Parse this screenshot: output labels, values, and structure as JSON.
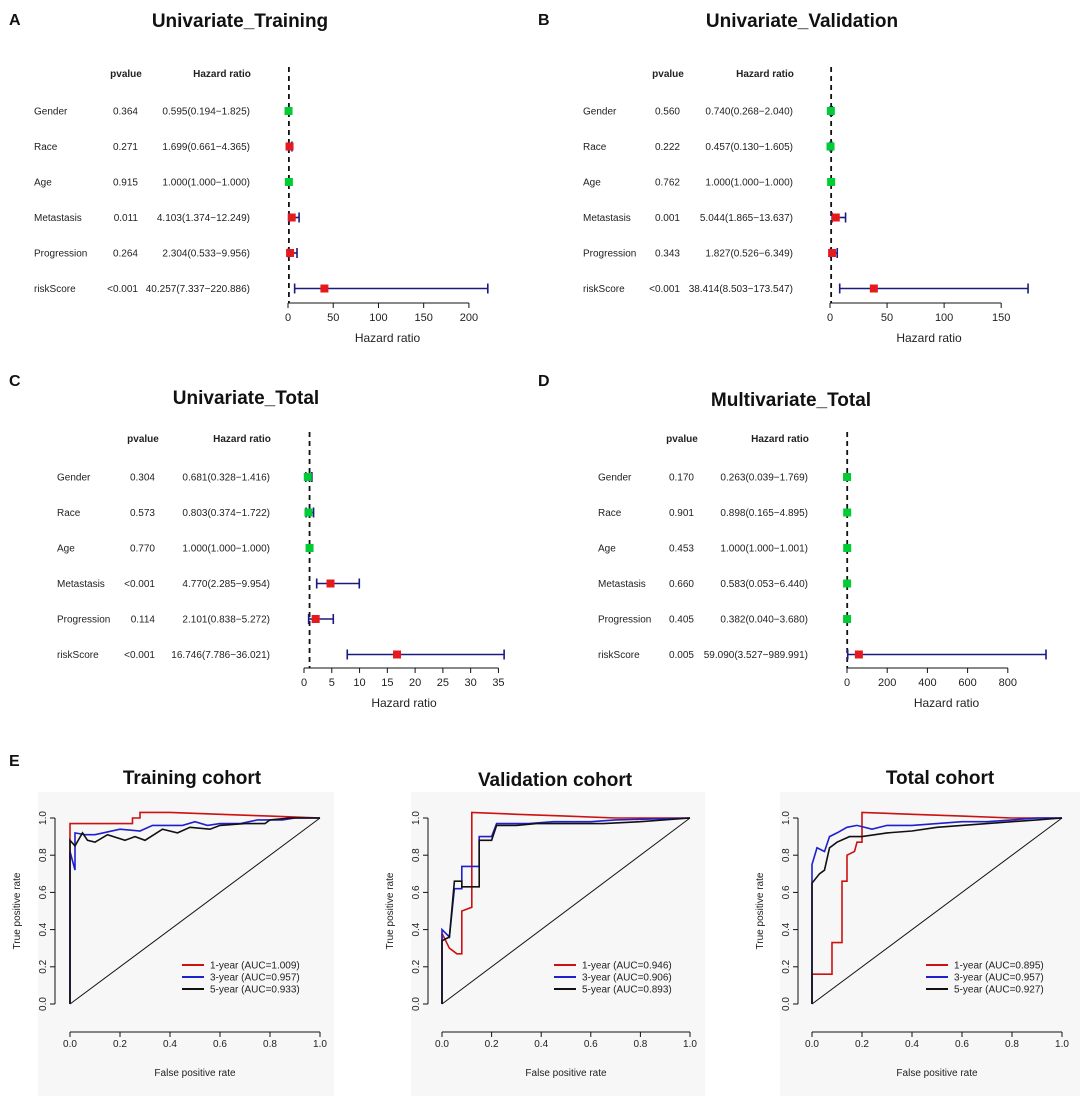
{
  "panel_labels": [
    "A",
    "B",
    "C",
    "D",
    "E"
  ],
  "colors": {
    "point_red": "#e41a1c",
    "point_green": "#00cc33",
    "ci_line": "#1a1a80",
    "roc_red": "#cc1111",
    "roc_blue": "#1f1fcc",
    "roc_black": "#111111",
    "roc_panel_bg": "#f7f7f7"
  },
  "chart_data": [
    {
      "type": "forest",
      "panel": "A",
      "title": "Univariate_Training",
      "header_pvalue": "pvalue",
      "header_hr": "Hazard ratio",
      "xlabel": "Hazard ratio",
      "xlim": [
        0,
        220
      ],
      "ticks": [
        0,
        50,
        100,
        150,
        200
      ],
      "rows": [
        {
          "name": "Gender",
          "pvalue": "0.364",
          "hr_text": "0.595(0.194−1.825)",
          "hr": 0.595,
          "lo": 0.194,
          "hi": 1.825,
          "color": "green"
        },
        {
          "name": "Race",
          "pvalue": "0.271",
          "hr_text": "1.699(0.661−4.365)",
          "hr": 1.699,
          "lo": 0.661,
          "hi": 4.365,
          "color": "red"
        },
        {
          "name": "Age",
          "pvalue": "0.915",
          "hr_text": "1.000(1.000−1.000)",
          "hr": 1.0,
          "lo": 1.0,
          "hi": 1.0,
          "color": "green"
        },
        {
          "name": "Metastasis",
          "pvalue": "0.011",
          "hr_text": "4.103(1.374−12.249)",
          "hr": 4.103,
          "lo": 1.374,
          "hi": 12.249,
          "color": "red"
        },
        {
          "name": "Progression",
          "pvalue": "0.264",
          "hr_text": "2.304(0.533−9.956)",
          "hr": 2.304,
          "lo": 0.533,
          "hi": 9.956,
          "color": "red"
        },
        {
          "name": "riskScore",
          "pvalue": "<0.001",
          "hr_text": "40.257(7.337−220.886)",
          "hr": 40.257,
          "lo": 7.337,
          "hi": 220.886,
          "color": "red"
        }
      ]
    },
    {
      "type": "forest",
      "panel": "B",
      "title": "Univariate_Validation",
      "header_pvalue": "pvalue",
      "header_hr": "Hazard ratio",
      "xlabel": "Hazard ratio",
      "xlim": [
        0,
        173.5
      ],
      "ticks": [
        0,
        50,
        100,
        150
      ],
      "rows": [
        {
          "name": "Gender",
          "pvalue": "0.560",
          "hr_text": "0.740(0.268−2.040)",
          "hr": 0.74,
          "lo": 0.268,
          "hi": 2.04,
          "color": "green"
        },
        {
          "name": "Race",
          "pvalue": "0.222",
          "hr_text": "0.457(0.130−1.605)",
          "hr": 0.457,
          "lo": 0.13,
          "hi": 1.605,
          "color": "green"
        },
        {
          "name": "Age",
          "pvalue": "0.762",
          "hr_text": "1.000(1.000−1.000)",
          "hr": 1.0,
          "lo": 1.0,
          "hi": 1.0,
          "color": "green"
        },
        {
          "name": "Metastasis",
          "pvalue": "0.001",
          "hr_text": "5.044(1.865−13.637)",
          "hr": 5.044,
          "lo": 1.865,
          "hi": 13.637,
          "color": "red"
        },
        {
          "name": "Progression",
          "pvalue": "0.343",
          "hr_text": "1.827(0.526−6.349)",
          "hr": 1.827,
          "lo": 0.526,
          "hi": 6.349,
          "color": "red"
        },
        {
          "name": "riskScore",
          "pvalue": "<0.001",
          "hr_text": "38.414(8.503−173.547)",
          "hr": 38.414,
          "lo": 8.503,
          "hi": 173.547,
          "color": "red"
        }
      ]
    },
    {
      "type": "forest",
      "panel": "C",
      "title": "Univariate_Total",
      "header_pvalue": "pvalue",
      "header_hr": "Hazard ratio",
      "xlabel": "Hazard ratio",
      "xlim": [
        0,
        36
      ],
      "ticks": [
        0,
        5,
        10,
        15,
        20,
        25,
        30,
        35
      ],
      "rows": [
        {
          "name": "Gender",
          "pvalue": "0.304",
          "hr_text": "0.681(0.328−1.416)",
          "hr": 0.681,
          "lo": 0.328,
          "hi": 1.416,
          "color": "green"
        },
        {
          "name": "Race",
          "pvalue": "0.573",
          "hr_text": "0.803(0.374−1.722)",
          "hr": 0.803,
          "lo": 0.374,
          "hi": 1.722,
          "color": "green"
        },
        {
          "name": "Age",
          "pvalue": "0.770",
          "hr_text": "1.000(1.000−1.000)",
          "hr": 1.0,
          "lo": 1.0,
          "hi": 1.0,
          "color": "green"
        },
        {
          "name": "Metastasis",
          "pvalue": "<0.001",
          "hr_text": "4.770(2.285−9.954)",
          "hr": 4.77,
          "lo": 2.285,
          "hi": 9.954,
          "color": "red"
        },
        {
          "name": "Progression",
          "pvalue": "0.114",
          "hr_text": "2.101(0.838−5.272)",
          "hr": 2.101,
          "lo": 0.838,
          "hi": 5.272,
          "color": "red"
        },
        {
          "name": "riskScore",
          "pvalue": "<0.001",
          "hr_text": "16.746(7.786−36.021)",
          "hr": 16.746,
          "lo": 7.786,
          "hi": 36.021,
          "color": "red"
        }
      ]
    },
    {
      "type": "forest",
      "panel": "D",
      "title": "Multivariate_Total",
      "header_pvalue": "pvalue",
      "header_hr": "Hazard ratio",
      "xlabel": "Hazard ratio",
      "xlim": [
        0,
        990
      ],
      "ticks": [
        0,
        200,
        400,
        600,
        800
      ],
      "rows": [
        {
          "name": "Gender",
          "pvalue": "0.170",
          "hr_text": "0.263(0.039−1.769)",
          "hr": 0.263,
          "lo": 0.039,
          "hi": 1.769,
          "color": "green"
        },
        {
          "name": "Race",
          "pvalue": "0.901",
          "hr_text": "0.898(0.165−4.895)",
          "hr": 0.898,
          "lo": 0.165,
          "hi": 4.895,
          "color": "green"
        },
        {
          "name": "Age",
          "pvalue": "0.453",
          "hr_text": "1.000(1.000−1.001)",
          "hr": 1.0,
          "lo": 1.0,
          "hi": 1.001,
          "color": "green"
        },
        {
          "name": "Metastasis",
          "pvalue": "0.660",
          "hr_text": "0.583(0.053−6.440)",
          "hr": 0.583,
          "lo": 0.053,
          "hi": 6.44,
          "color": "green"
        },
        {
          "name": "Progression",
          "pvalue": "0.405",
          "hr_text": "0.382(0.040−3.680)",
          "hr": 0.382,
          "lo": 0.04,
          "hi": 3.68,
          "color": "green"
        },
        {
          "name": "riskScore",
          "pvalue": "0.005",
          "hr_text": "59.090(3.527−989.991)",
          "hr": 59.09,
          "lo": 3.527,
          "hi": 989.991,
          "color": "red"
        }
      ]
    },
    {
      "type": "line",
      "panel": "E",
      "title": "Training cohort",
      "xlabel": "False positive rate",
      "ylabel": "True positive rate",
      "xlim": [
        0,
        1
      ],
      "ylim": [
        0,
        1
      ],
      "ticks": [
        "0.0",
        "0.2",
        "0.4",
        "0.6",
        "0.8",
        "1.0"
      ],
      "series": [
        {
          "name": "1-year (AUC=1.009)",
          "color": "red",
          "points": [
            [
              0,
              0
            ],
            [
              0,
              0.97
            ],
            [
              0.25,
              0.97
            ],
            [
              0.25,
              1.0
            ],
            [
              0.28,
              1.0
            ],
            [
              0.28,
              1.03
            ],
            [
              0.4,
              1.03
            ],
            [
              0.6,
              1.02
            ],
            [
              0.8,
              1.01
            ],
            [
              1.0,
              1.0
            ]
          ]
        },
        {
          "name": "3-year (AUC=0.957)",
          "color": "blue",
          "points": [
            [
              0,
              0
            ],
            [
              0,
              0.82
            ],
            [
              0.02,
              0.72
            ],
            [
              0.02,
              0.92
            ],
            [
              0.06,
              0.91
            ],
            [
              0.1,
              0.91
            ],
            [
              0.2,
              0.94
            ],
            [
              0.28,
              0.93
            ],
            [
              0.33,
              0.96
            ],
            [
              0.45,
              0.96
            ],
            [
              0.5,
              0.98
            ],
            [
              0.55,
              0.96
            ],
            [
              0.6,
              0.97
            ],
            [
              0.68,
              0.97
            ],
            [
              0.75,
              0.99
            ],
            [
              0.85,
              0.99
            ],
            [
              0.9,
              1.0
            ],
            [
              1.0,
              1.0
            ]
          ]
        },
        {
          "name": "5-year (AUC=0.933)",
          "color": "black",
          "points": [
            [
              0,
              0
            ],
            [
              0,
              0.88
            ],
            [
              0.02,
              0.85
            ],
            [
              0.05,
              0.92
            ],
            [
              0.07,
              0.88
            ],
            [
              0.1,
              0.87
            ],
            [
              0.15,
              0.91
            ],
            [
              0.22,
              0.88
            ],
            [
              0.26,
              0.9
            ],
            [
              0.3,
              0.88
            ],
            [
              0.37,
              0.94
            ],
            [
              0.43,
              0.92
            ],
            [
              0.48,
              0.95
            ],
            [
              0.56,
              0.94
            ],
            [
              0.6,
              0.96
            ],
            [
              0.7,
              0.97
            ],
            [
              0.78,
              0.97
            ],
            [
              0.8,
              0.99
            ],
            [
              0.88,
              1.0
            ],
            [
              1.0,
              1.0
            ]
          ]
        }
      ]
    },
    {
      "type": "line",
      "panel": "E",
      "title": "Validation cohort",
      "xlabel": "False positive rate",
      "ylabel": "True positive rate",
      "xlim": [
        0,
        1
      ],
      "ylim": [
        0,
        1
      ],
      "ticks": [
        "0.0",
        "0.2",
        "0.4",
        "0.6",
        "0.8",
        "1.0"
      ],
      "series": [
        {
          "name": "1-year (AUC=0.946)",
          "color": "red",
          "points": [
            [
              0,
              0
            ],
            [
              0,
              0.38
            ],
            [
              0.03,
              0.3
            ],
            [
              0.06,
              0.27
            ],
            [
              0.08,
              0.27
            ],
            [
              0.08,
              0.5
            ],
            [
              0.12,
              0.52
            ],
            [
              0.12,
              1.03
            ],
            [
              0.3,
              1.02
            ],
            [
              0.5,
              1.01
            ],
            [
              0.7,
              1.0
            ],
            [
              1.0,
              1.0
            ]
          ]
        },
        {
          "name": "3-year (AUC=0.906)",
          "color": "blue",
          "points": [
            [
              0,
              0
            ],
            [
              0,
              0.4
            ],
            [
              0.03,
              0.36
            ],
            [
              0.05,
              0.62
            ],
            [
              0.08,
              0.62
            ],
            [
              0.08,
              0.74
            ],
            [
              0.15,
              0.74
            ],
            [
              0.15,
              0.9
            ],
            [
              0.2,
              0.9
            ],
            [
              0.22,
              0.97
            ],
            [
              0.35,
              0.97
            ],
            [
              0.45,
              0.98
            ],
            [
              0.6,
              0.98
            ],
            [
              0.7,
              0.99
            ],
            [
              1.0,
              1.0
            ]
          ]
        },
        {
          "name": "5-year (AUC=0.893)",
          "color": "black",
          "points": [
            [
              0,
              0
            ],
            [
              0,
              0.34
            ],
            [
              0.03,
              0.36
            ],
            [
              0.05,
              0.66
            ],
            [
              0.08,
              0.66
            ],
            [
              0.08,
              0.63
            ],
            [
              0.15,
              0.63
            ],
            [
              0.15,
              0.88
            ],
            [
              0.2,
              0.88
            ],
            [
              0.22,
              0.96
            ],
            [
              0.3,
              0.96
            ],
            [
              0.38,
              0.97
            ],
            [
              0.5,
              0.97
            ],
            [
              0.65,
              0.97
            ],
            [
              0.8,
              0.98
            ],
            [
              1.0,
              1.0
            ]
          ]
        }
      ]
    },
    {
      "type": "line",
      "panel": "E",
      "title": "Total cohort",
      "xlabel": "False positive rate",
      "ylabel": "True positive rate",
      "xlim": [
        0,
        1
      ],
      "ylim": [
        0,
        1
      ],
      "ticks": [
        "0.0",
        "0.2",
        "0.4",
        "0.6",
        "0.8",
        "1.0"
      ],
      "series": [
        {
          "name": "1-year (AUC=0.895)",
          "color": "red",
          "points": [
            [
              0,
              0
            ],
            [
              0,
              0.16
            ],
            [
              0.08,
              0.16
            ],
            [
              0.08,
              0.33
            ],
            [
              0.12,
              0.33
            ],
            [
              0.12,
              0.66
            ],
            [
              0.14,
              0.66
            ],
            [
              0.14,
              0.8
            ],
            [
              0.17,
              0.82
            ],
            [
              0.18,
              0.87
            ],
            [
              0.2,
              0.87
            ],
            [
              0.2,
              1.03
            ],
            [
              0.4,
              1.02
            ],
            [
              0.6,
              1.01
            ],
            [
              0.8,
              1.0
            ],
            [
              1.0,
              1.0
            ]
          ]
        },
        {
          "name": "3-year (AUC=0.957)",
          "color": "blue",
          "points": [
            [
              0,
              0
            ],
            [
              0,
              0.75
            ],
            [
              0.02,
              0.84
            ],
            [
              0.05,
              0.82
            ],
            [
              0.07,
              0.9
            ],
            [
              0.1,
              0.92
            ],
            [
              0.14,
              0.95
            ],
            [
              0.18,
              0.96
            ],
            [
              0.24,
              0.94
            ],
            [
              0.3,
              0.96
            ],
            [
              0.4,
              0.96
            ],
            [
              0.5,
              0.97
            ],
            [
              0.6,
              0.98
            ],
            [
              0.7,
              0.98
            ],
            [
              0.8,
              0.99
            ],
            [
              0.9,
              1.0
            ],
            [
              1.0,
              1.0
            ]
          ]
        },
        {
          "name": "5-year (AUC=0.927)",
          "color": "black",
          "points": [
            [
              0,
              0
            ],
            [
              0,
              0.65
            ],
            [
              0.03,
              0.7
            ],
            [
              0.05,
              0.72
            ],
            [
              0.07,
              0.84
            ],
            [
              0.1,
              0.87
            ],
            [
              0.15,
              0.9
            ],
            [
              0.2,
              0.9
            ],
            [
              0.3,
              0.92
            ],
            [
              0.4,
              0.93
            ],
            [
              0.5,
              0.95
            ],
            [
              0.6,
              0.96
            ],
            [
              0.7,
              0.97
            ],
            [
              0.8,
              0.98
            ],
            [
              0.9,
              0.99
            ],
            [
              1.0,
              1.0
            ]
          ]
        }
      ]
    }
  ]
}
